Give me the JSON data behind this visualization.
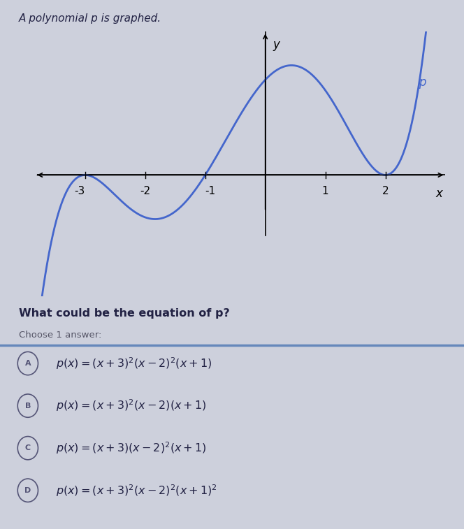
{
  "title": "A polynomial p is graphed.",
  "question": "What could be the equation of p?",
  "instruction": "Choose 1 answer:",
  "answers": [
    {
      "label": "A",
      "text_parts": [
        "p(x) = (x + 3)",
        "2",
        "(x − 2)",
        "2",
        "(x + 1)"
      ],
      "selected": true
    },
    {
      "label": "B",
      "text_parts": [
        "p(x) = (x + 3)",
        "2",
        "(x − 2)(x + 1)"
      ],
      "selected": false
    },
    {
      "label": "C",
      "text_parts": [
        "p(x) = (x + 3)(x − 2)",
        "2",
        "(x + 1)"
      ],
      "selected": false
    },
    {
      "label": "D",
      "text_parts": [
        "p(x) = (x + 3)",
        "2",
        "(x − 2)",
        "2",
        "(x + 1)",
        "2"
      ],
      "selected": false
    }
  ],
  "curve_color": "#4466cc",
  "bg_color": "#cdd0dc",
  "graph_bg": "#ffffff",
  "xmin": -3.8,
  "xmax": 3.0,
  "ymin": -5.5,
  "ymax": 6.5,
  "scale": 0.12,
  "p_label": "p",
  "axis_label_x": "x",
  "axis_label_y": "y",
  "answer_math": [
    "p(x) = (x+3)^{2}(x-2)^{2}(x+1)",
    "p(x) = (x+3)^{2}(x-2)(x+1)",
    "p(x) = (x+3)(x-2)^{2}(x+1)",
    "p(x) = (x+3)^{2}(x-2)^{2}(x+1)^{2}"
  ],
  "separator_color": "#6688bb",
  "text_color": "#333355",
  "circle_color": "#555577"
}
